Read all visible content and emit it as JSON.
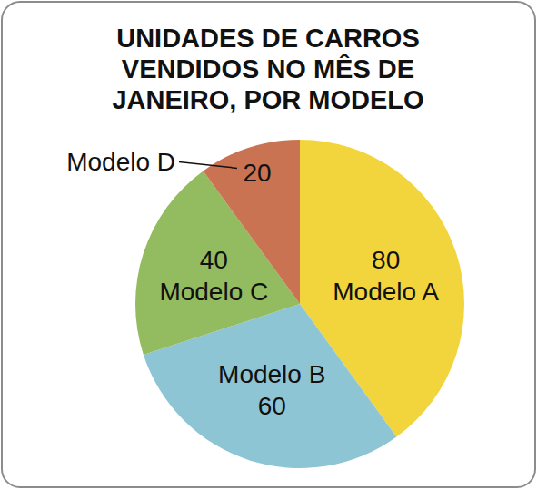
{
  "chart_data": {
    "type": "pie",
    "title": "UNIDADES DE CARROS VENDIDOS NO MÊS DE JANEIRO, POR MODELO",
    "categories": [
      "Modelo A",
      "Modelo B",
      "Modelo C",
      "Modelo D"
    ],
    "values": [
      80,
      60,
      40,
      20
    ],
    "colors": [
      "#f2d53c",
      "#8ec5d4",
      "#93bb5f",
      "#c97352"
    ],
    "data_labels": true
  }
}
